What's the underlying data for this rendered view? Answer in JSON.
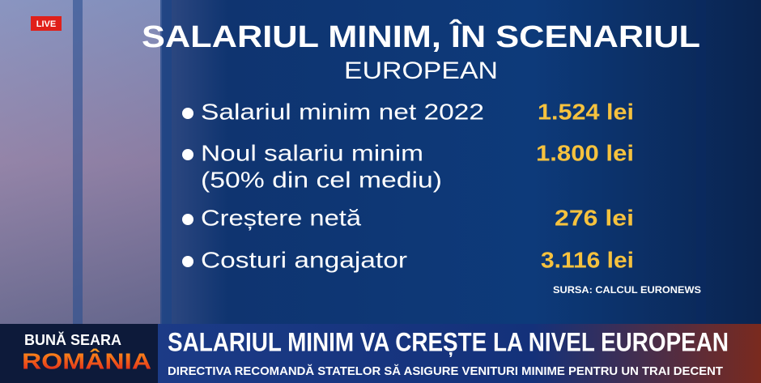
{
  "badge": "LIVE",
  "title": "SALARIUL MINIM, ÎN SCENARIUL",
  "subtitle": "EUROPEAN",
  "items": [
    {
      "label": [
        "Salariul minim net 2022"
      ],
      "value": "1.524 lei"
    },
    {
      "label": [
        "Noul salariu minim",
        "(50% din cel mediu)"
      ],
      "value": "1.800 lei"
    },
    {
      "label": [
        "Creștere netă"
      ],
      "value": "276 lei"
    },
    {
      "label": [
        "Costuri angajator"
      ],
      "value": "3.116 lei"
    }
  ],
  "source": "SURSA: CALCUL EURONEWS",
  "show": [
    "BUNĂ SEARA",
    "ROMÂNIA"
  ],
  "headline": "SALARIUL MINIM VA CREȘTE LA NIVEL EUROPEAN",
  "subheadline": "DIRECTIVA RECOMANDĂ STATELOR SĂ ASIGURE VENITURI MINIME PENTRU UN TRAI DECENT"
}
